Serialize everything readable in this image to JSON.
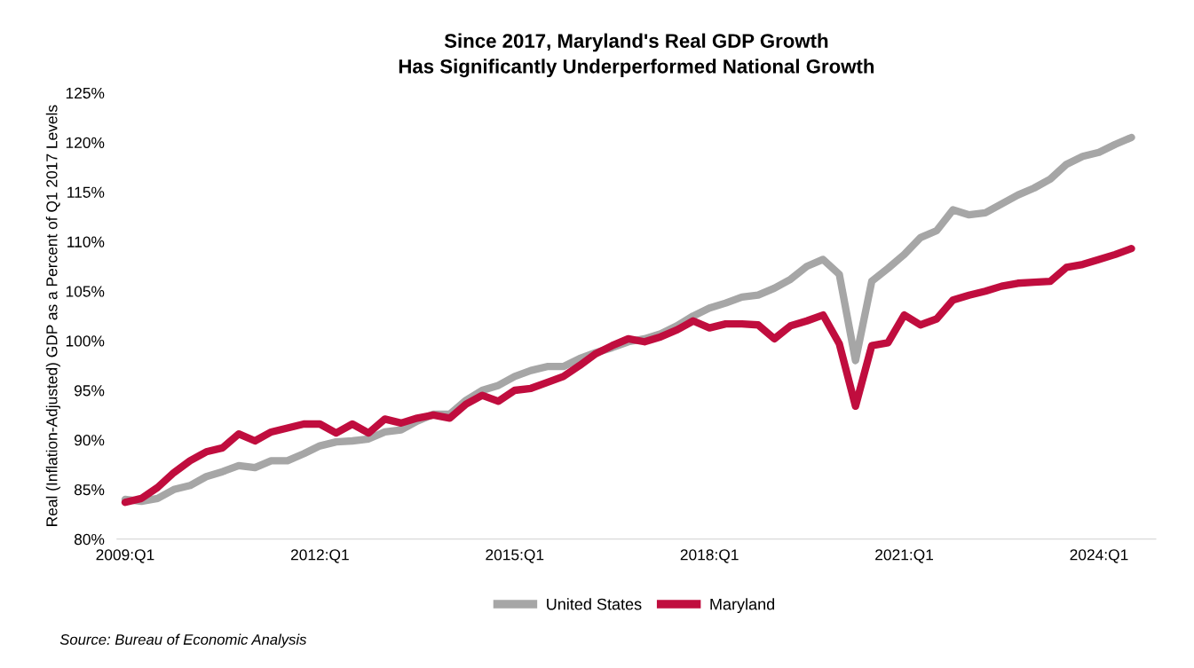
{
  "chart_data": {
    "type": "line",
    "title": "Since 2017, Maryland's Real GDP Growth\nHas Significantly Underperformed National Growth",
    "ylabel": "Real (Inflation-Adjusted) GDP as a Percent of Q1 2017 Levels",
    "categories": [
      "2009:Q1",
      null,
      null,
      null,
      null,
      null,
      null,
      null,
      null,
      null,
      null,
      null,
      "2012:Q1",
      null,
      null,
      null,
      null,
      null,
      null,
      null,
      null,
      null,
      null,
      null,
      "2015:Q1",
      null,
      null,
      null,
      null,
      null,
      null,
      null,
      null,
      null,
      null,
      null,
      "2018:Q1",
      null,
      null,
      null,
      null,
      null,
      null,
      null,
      null,
      null,
      null,
      null,
      "2021:Q1",
      null,
      null,
      null,
      null,
      null,
      null,
      null,
      null,
      null,
      null,
      null,
      "2024:Q1",
      null,
      null
    ],
    "series": [
      {
        "name": "United States",
        "color": "#a6a6a6",
        "values": [
          84.0,
          83.8,
          84.1,
          85.0,
          85.4,
          86.3,
          86.8,
          87.4,
          87.2,
          87.9,
          87.9,
          88.6,
          89.4,
          89.8,
          89.9,
          90.1,
          90.8,
          91.0,
          91.9,
          92.6,
          92.6,
          94.0,
          95.0,
          95.5,
          96.4,
          97.0,
          97.4,
          97.4,
          98.2,
          98.8,
          99.3,
          99.9,
          100.2,
          100.7,
          101.5,
          102.5,
          103.3,
          103.8,
          104.4,
          104.6,
          105.3,
          106.2,
          107.5,
          108.2,
          106.7,
          98.0,
          106.0,
          107.3,
          108.7,
          110.4,
          111.1,
          113.2,
          112.7,
          112.9,
          113.8,
          114.7,
          115.4,
          116.3,
          117.8,
          118.6,
          119.0,
          119.8,
          120.5
        ]
      },
      {
        "name": "Maryland",
        "color": "#c00d3e",
        "values": [
          83.7,
          84.1,
          85.2,
          86.7,
          87.9,
          88.8,
          89.2,
          90.6,
          89.9,
          90.8,
          91.2,
          91.6,
          91.6,
          90.7,
          91.6,
          90.7,
          92.1,
          91.7,
          92.2,
          92.5,
          92.2,
          93.6,
          94.5,
          93.9,
          95.0,
          95.2,
          95.8,
          96.4,
          97.5,
          98.7,
          99.5,
          100.2,
          99.9,
          100.4,
          101.1,
          102.0,
          101.3,
          101.7,
          101.7,
          101.6,
          100.2,
          101.5,
          102.0,
          102.6,
          99.7,
          93.4,
          99.5,
          99.8,
          102.6,
          101.6,
          102.2,
          104.1,
          104.6,
          105.0,
          105.5,
          105.8,
          105.9,
          106.0,
          107.4,
          107.7,
          108.2,
          108.7,
          109.3
        ]
      }
    ],
    "ylim": [
      80,
      125
    ],
    "yticks": [
      {
        "value": 80,
        "label": "80%"
      },
      {
        "value": 85,
        "label": "85%"
      },
      {
        "value": 90,
        "label": "90%"
      },
      {
        "value": 95,
        "label": "95%"
      },
      {
        "value": 100,
        "label": "100%"
      },
      {
        "value": 105,
        "label": "105%"
      },
      {
        "value": 110,
        "label": "110%"
      },
      {
        "value": 115,
        "label": "115%"
      },
      {
        "value": 120,
        "label": "120%"
      },
      {
        "value": 125,
        "label": "125%"
      }
    ],
    "grid": false,
    "legend": "bottom",
    "marker": "none",
    "line_style": "solid",
    "annotations": [
      "Source: Bureau of Economic Analysis"
    ]
  }
}
